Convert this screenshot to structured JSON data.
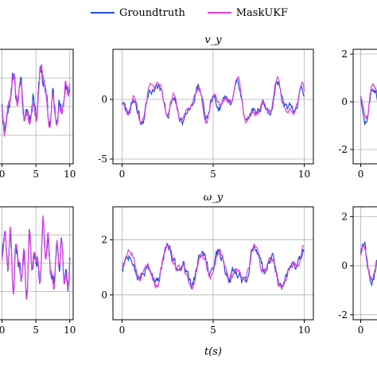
{
  "chart_data": {
    "type": "line",
    "legend": {
      "placement": "top-center",
      "entries": [
        {
          "label": "Groundtruth",
          "color": "#1f4fd6"
        },
        {
          "label": "MaskUKF",
          "color": "#e040e0"
        }
      ]
    },
    "xlabel": "t(s)",
    "xlim": [
      0,
      10
    ],
    "xticks": [
      "0",
      "5",
      "10"
    ],
    "grid": true,
    "panels": [
      {
        "id": "top-left",
        "title": "",
        "ylim": [
          -1.7,
          2.2
        ],
        "yticks": [],
        "yticks_values": [],
        "series_pattern": "gt/est",
        "seed": 11,
        "amp": 1.0,
        "offset": 0.4
      },
      {
        "id": "top-middle",
        "title": "v_y",
        "ylim": [
          -5.4,
          4.2
        ],
        "yticks": [
          "0",
          "-5"
        ],
        "yticks_values": [
          0,
          -5
        ],
        "seed": 23,
        "amp": 1.9,
        "offset": -0.3
      },
      {
        "id": "top-right",
        "title": "",
        "ylim": [
          -2.6,
          2.2
        ],
        "yticks": [
          "2",
          "0",
          "-2"
        ],
        "yticks_values": [
          2,
          0,
          -2
        ],
        "seed": 37,
        "amp": 1.0,
        "offset": 0.0
      },
      {
        "id": "bottom-left",
        "title": "",
        "ylim": [
          -1.6,
          1.8
        ],
        "yticks": [],
        "yticks_values": [],
        "seed": 41,
        "amp": 0.8,
        "offset": 0.2
      },
      {
        "id": "bottom-middle",
        "title": "ω_y",
        "ylim": [
          -0.9,
          3.2
        ],
        "yticks": [
          "2",
          "0"
        ],
        "yticks_values": [
          2,
          0
        ],
        "seed": 53,
        "amp": 1.0,
        "offset": 1.0
      },
      {
        "id": "bottom-right",
        "title": "",
        "ylim": [
          -2.2,
          2.4
        ],
        "yticks": [
          "2",
          "0",
          "-2"
        ],
        "yticks_values": [
          2,
          0,
          -2
        ],
        "seed": 67,
        "amp": 1.0,
        "offset": 0.0
      }
    ]
  }
}
